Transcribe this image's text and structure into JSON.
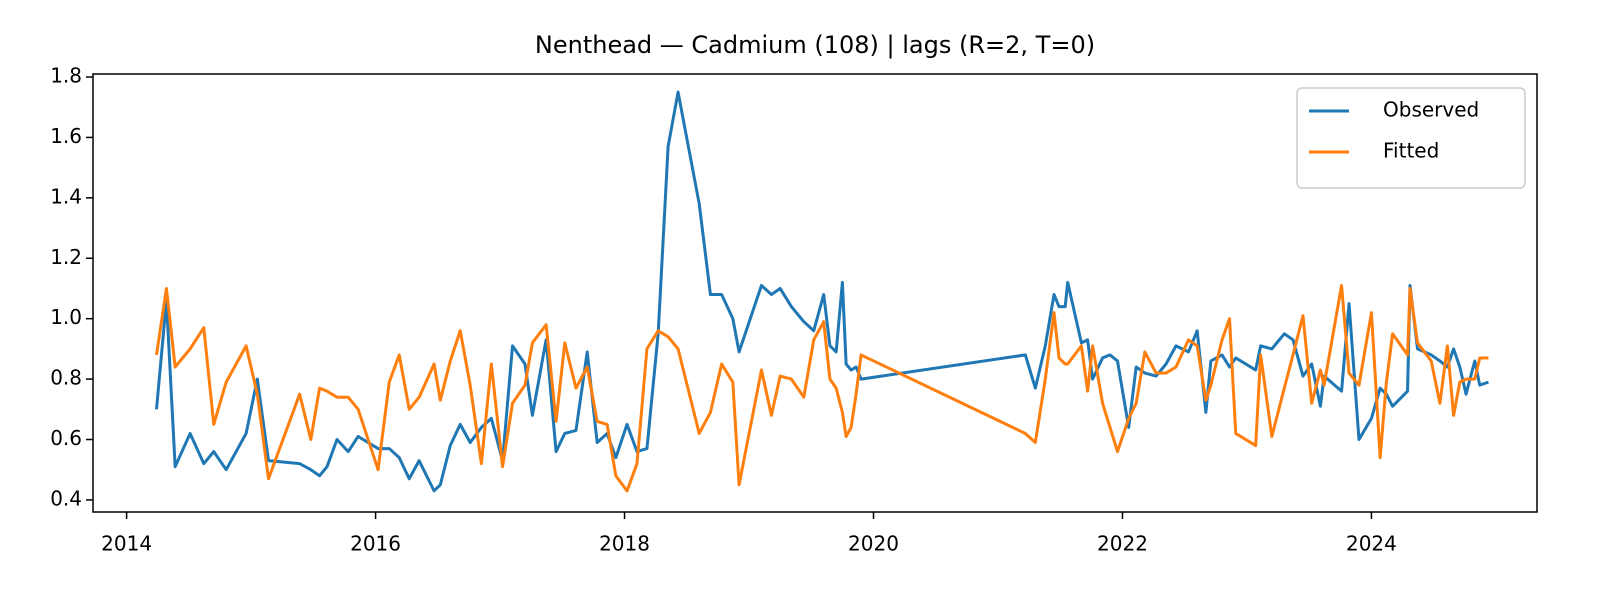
{
  "chart_data": {
    "type": "line",
    "title": "Nenthead — Cadmium (108) | lags (R=2, T=0)",
    "x": [
      2014.24,
      2014.32,
      2014.39,
      2014.51,
      2014.62,
      2014.7,
      2014.8,
      2014.96,
      2015.05,
      2015.14,
      2015.39,
      2015.48,
      2015.55,
      2015.61,
      2015.69,
      2015.78,
      2015.86,
      2016.02,
      2016.11,
      2016.19,
      2016.27,
      2016.35,
      2016.47,
      2016.52,
      2016.6,
      2016.68,
      2016.76,
      2016.85,
      2016.93,
      2017.02,
      2017.1,
      2017.2,
      2017.26,
      2017.37,
      2017.45,
      2017.52,
      2017.61,
      2017.7,
      2017.78,
      2017.86,
      2017.93,
      2018.02,
      2018.1,
      2018.18,
      2018.27,
      2018.35,
      2018.43,
      2018.6,
      2018.69,
      2018.78,
      2018.87,
      2018.92,
      2019.1,
      2019.18,
      2019.25,
      2019.34,
      2019.44,
      2019.52,
      2019.6,
      2019.65,
      2019.7,
      2019.75,
      2019.78,
      2019.82,
      2019.86,
      2019.9,
      2021.22,
      2021.3,
      2021.38,
      2021.45,
      2021.49,
      2021.54,
      2021.56,
      2021.67,
      2021.72,
      2021.76,
      2021.84,
      2021.9,
      2021.96,
      2022.05,
      2022.11,
      2022.18,
      2022.27,
      2022.35,
      2022.43,
      2022.53,
      2022.6,
      2022.67,
      2022.71,
      2022.8,
      2022.86,
      2022.91,
      2023.07,
      2023.11,
      2023.2,
      2023.3,
      2023.37,
      2023.45,
      2023.52,
      2023.59,
      2023.62,
      2023.76,
      2023.82,
      2023.9,
      2024.0,
      2024.07,
      2024.12,
      2024.17,
      2024.29,
      2024.31,
      2024.37,
      2024.48,
      2024.55,
      2024.61,
      2024.66,
      2024.71,
      2024.76,
      2024.83,
      2024.87,
      2024.94
    ],
    "series": [
      {
        "name": "Observed",
        "color": "#1f77b4",
        "values": [
          0.7,
          1.06,
          0.51,
          0.62,
          0.52,
          0.56,
          0.5,
          0.62,
          0.8,
          0.53,
          0.52,
          0.5,
          0.48,
          0.51,
          0.6,
          0.56,
          0.61,
          0.57,
          0.57,
          0.54,
          0.47,
          0.53,
          0.43,
          0.45,
          0.58,
          0.65,
          0.59,
          0.64,
          0.67,
          0.53,
          0.91,
          0.85,
          0.68,
          0.93,
          0.56,
          0.62,
          0.63,
          0.89,
          0.59,
          0.62,
          0.54,
          0.65,
          0.56,
          0.57,
          0.95,
          1.57,
          1.75,
          1.38,
          1.08,
          1.08,
          1.0,
          0.89,
          1.11,
          1.08,
          1.1,
          1.04,
          0.99,
          0.96,
          1.08,
          0.91,
          0.89,
          1.12,
          0.85,
          0.83,
          0.84,
          0.8,
          0.88,
          0.77,
          0.91,
          1.08,
          1.04,
          1.04,
          1.12,
          0.92,
          0.93,
          0.8,
          0.87,
          0.88,
          0.86,
          0.64,
          0.84,
          0.82,
          0.81,
          0.85,
          0.91,
          0.89,
          0.96,
          0.69,
          0.86,
          0.88,
          0.84,
          0.87,
          0.83,
          0.91,
          0.9,
          0.95,
          0.93,
          0.81,
          0.85,
          0.71,
          0.81,
          0.76,
          1.05,
          0.6,
          0.67,
          0.77,
          0.75,
          0.71,
          0.76,
          1.11,
          0.9,
          0.88,
          0.86,
          0.84,
          0.9,
          0.84,
          0.75,
          0.86,
          0.78,
          0.79
        ]
      },
      {
        "name": "Fitted",
        "color": "#ff7f0e",
        "values": [
          0.88,
          1.1,
          0.84,
          0.9,
          0.97,
          0.65,
          0.79,
          0.91,
          0.75,
          0.47,
          0.75,
          0.6,
          0.77,
          0.76,
          0.74,
          0.74,
          0.7,
          0.5,
          0.79,
          0.88,
          0.7,
          0.74,
          0.85,
          0.73,
          0.86,
          0.96,
          0.78,
          0.52,
          0.85,
          0.51,
          0.72,
          0.78,
          0.92,
          0.98,
          0.66,
          0.92,
          0.77,
          0.84,
          0.66,
          0.65,
          0.48,
          0.43,
          0.52,
          0.9,
          0.96,
          0.94,
          0.9,
          0.62,
          0.69,
          0.85,
          0.79,
          0.45,
          0.83,
          0.68,
          0.81,
          0.8,
          0.74,
          0.93,
          0.99,
          0.8,
          0.77,
          0.69,
          0.61,
          0.64,
          0.75,
          0.88,
          0.62,
          0.59,
          0.8,
          1.02,
          0.87,
          0.85,
          0.85,
          0.91,
          0.76,
          0.91,
          0.72,
          0.64,
          0.56,
          0.67,
          0.72,
          0.89,
          0.82,
          0.82,
          0.84,
          0.93,
          0.91,
          0.73,
          0.78,
          0.93,
          1.0,
          0.62,
          0.58,
          0.88,
          0.61,
          0.77,
          0.88,
          1.01,
          0.72,
          0.83,
          0.78,
          1.11,
          0.82,
          0.78,
          1.02,
          0.54,
          0.79,
          0.95,
          0.88,
          1.1,
          0.92,
          0.86,
          0.72,
          0.91,
          0.68,
          0.79,
          0.8,
          0.8,
          0.87,
          0.87
        ]
      }
    ],
    "xlim": [
      2013.73,
      2025.33
    ],
    "ylim": [
      0.36,
      1.81
    ],
    "xticks": [
      2014,
      2016,
      2018,
      2020,
      2022,
      2024
    ],
    "yticks": [
      0.4,
      0.6,
      0.8,
      {
        "value": 1,
        "label": "1.0"
      },
      1.2,
      1.4,
      1.6,
      1.8
    ],
    "legend": "upper right",
    "grid": false
  }
}
